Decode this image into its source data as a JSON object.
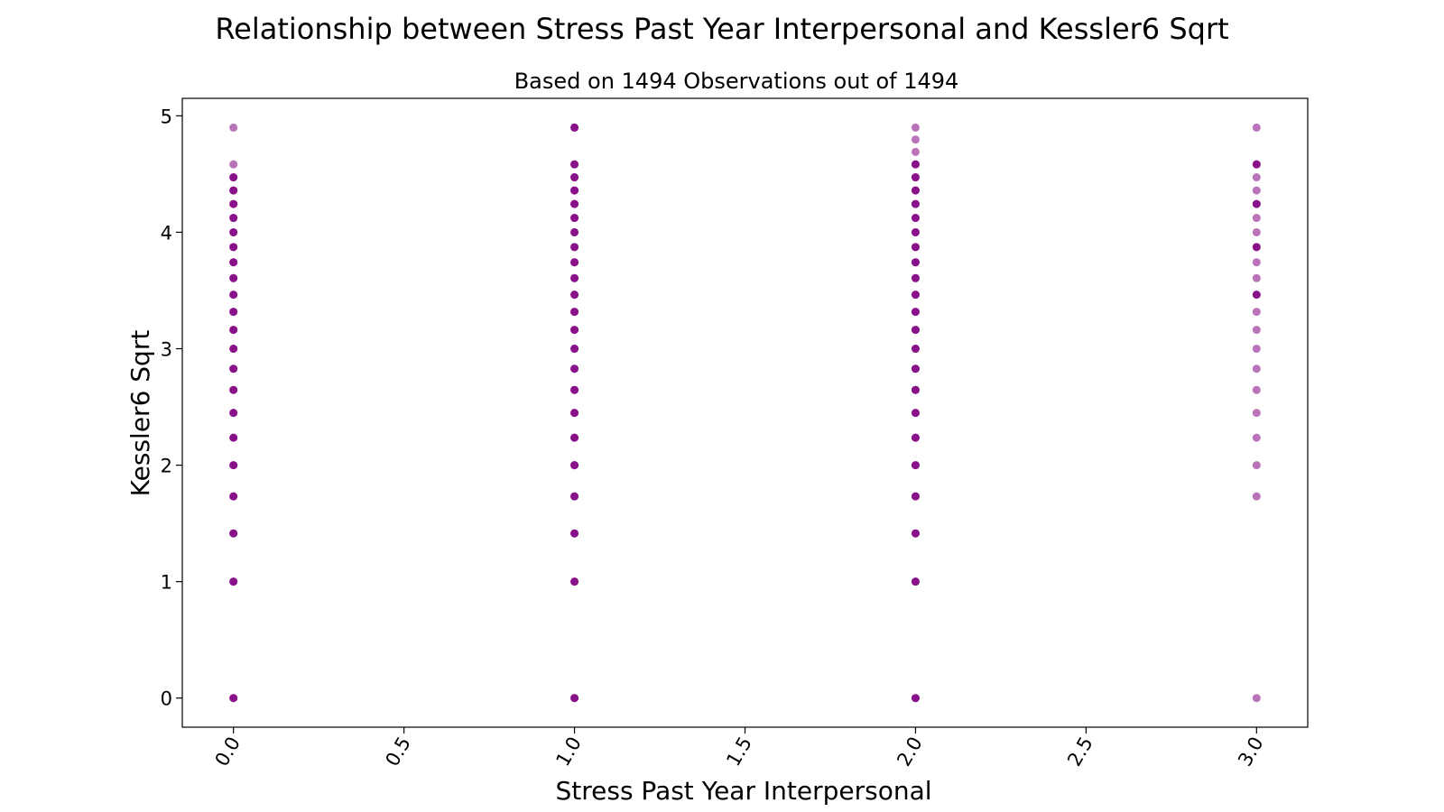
{
  "chart_data": {
    "type": "scatter",
    "title": "Relationship between Stress Past Year Interpersonal and Kessler6 Sqrt",
    "subtitle": "Based on 1494 Observations out of 1494",
    "xlabel": "Stress Past Year Interpersonal",
    "ylabel": "Kessler6 Sqrt",
    "xlim": [
      -0.15,
      3.15
    ],
    "ylim": [
      -0.25,
      5.15
    ],
    "xticks": [
      0.0,
      0.5,
      1.0,
      1.5,
      2.0,
      2.5,
      3.0
    ],
    "xtick_labels": [
      "0.0",
      "0.5",
      "1.0",
      "1.5",
      "2.0",
      "2.5",
      "3.0"
    ],
    "yticks": [
      0,
      1,
      2,
      3,
      4,
      5
    ],
    "ytick_labels": [
      "0",
      "1",
      "2",
      "3",
      "4",
      "5"
    ],
    "grid": false,
    "marker_color": "#800080",
    "series": [
      {
        "points": [
          {
            "x": 0,
            "y": 0
          },
          {
            "x": 0,
            "y": 1
          },
          {
            "x": 0,
            "y": 1.414
          },
          {
            "x": 0,
            "y": 1.732
          },
          {
            "x": 0,
            "y": 2
          },
          {
            "x": 0,
            "y": 2.236
          },
          {
            "x": 0,
            "y": 2.449
          },
          {
            "x": 0,
            "y": 2.646
          },
          {
            "x": 0,
            "y": 2.828
          },
          {
            "x": 0,
            "y": 3
          },
          {
            "x": 0,
            "y": 3.162
          },
          {
            "x": 0,
            "y": 3.317
          },
          {
            "x": 0,
            "y": 3.464
          },
          {
            "x": 0,
            "y": 3.606
          },
          {
            "x": 0,
            "y": 3.742
          },
          {
            "x": 0,
            "y": 3.873
          },
          {
            "x": 0,
            "y": 4
          },
          {
            "x": 0,
            "y": 4.123
          },
          {
            "x": 0,
            "y": 4.243
          },
          {
            "x": 0,
            "y": 4.359
          },
          {
            "x": 0,
            "y": 4.472
          },
          {
            "x": 0,
            "y": 4.583
          },
          {
            "x": 0,
            "y": 4.899
          },
          {
            "x": 1,
            "y": 0
          },
          {
            "x": 1,
            "y": 1
          },
          {
            "x": 1,
            "y": 1.414
          },
          {
            "x": 1,
            "y": 1.732
          },
          {
            "x": 1,
            "y": 2
          },
          {
            "x": 1,
            "y": 2.236
          },
          {
            "x": 1,
            "y": 2.449
          },
          {
            "x": 1,
            "y": 2.646
          },
          {
            "x": 1,
            "y": 2.828
          },
          {
            "x": 1,
            "y": 3
          },
          {
            "x": 1,
            "y": 3.162
          },
          {
            "x": 1,
            "y": 3.317
          },
          {
            "x": 1,
            "y": 3.464
          },
          {
            "x": 1,
            "y": 3.606
          },
          {
            "x": 1,
            "y": 3.742
          },
          {
            "x": 1,
            "y": 3.873
          },
          {
            "x": 1,
            "y": 4
          },
          {
            "x": 1,
            "y": 4.123
          },
          {
            "x": 1,
            "y": 4.243
          },
          {
            "x": 1,
            "y": 4.359
          },
          {
            "x": 1,
            "y": 4.472
          },
          {
            "x": 1,
            "y": 4.583
          },
          {
            "x": 1,
            "y": 4.899
          },
          {
            "x": 2,
            "y": 0
          },
          {
            "x": 2,
            "y": 1
          },
          {
            "x": 2,
            "y": 1.414
          },
          {
            "x": 2,
            "y": 1.732
          },
          {
            "x": 2,
            "y": 2
          },
          {
            "x": 2,
            "y": 2.236
          },
          {
            "x": 2,
            "y": 2.449
          },
          {
            "x": 2,
            "y": 2.646
          },
          {
            "x": 2,
            "y": 2.828
          },
          {
            "x": 2,
            "y": 3
          },
          {
            "x": 2,
            "y": 3.162
          },
          {
            "x": 2,
            "y": 3.317
          },
          {
            "x": 2,
            "y": 3.464
          },
          {
            "x": 2,
            "y": 3.606
          },
          {
            "x": 2,
            "y": 3.742
          },
          {
            "x": 2,
            "y": 3.873
          },
          {
            "x": 2,
            "y": 4
          },
          {
            "x": 2,
            "y": 4.123
          },
          {
            "x": 2,
            "y": 4.243
          },
          {
            "x": 2,
            "y": 4.359
          },
          {
            "x": 2,
            "y": 4.472
          },
          {
            "x": 2,
            "y": 4.583
          },
          {
            "x": 2,
            "y": 4.69
          },
          {
            "x": 2,
            "y": 4.796
          },
          {
            "x": 2,
            "y": 4.899
          },
          {
            "x": 3,
            "y": 0
          },
          {
            "x": 3,
            "y": 1.732
          },
          {
            "x": 3,
            "y": 2
          },
          {
            "x": 3,
            "y": 2.236
          },
          {
            "x": 3,
            "y": 2.449
          },
          {
            "x": 3,
            "y": 2.646
          },
          {
            "x": 3,
            "y": 2.828
          },
          {
            "x": 3,
            "y": 3
          },
          {
            "x": 3,
            "y": 3.162
          },
          {
            "x": 3,
            "y": 3.317
          },
          {
            "x": 3,
            "y": 3.464
          },
          {
            "x": 3,
            "y": 3.606
          },
          {
            "x": 3,
            "y": 3.742
          },
          {
            "x": 3,
            "y": 3.873
          },
          {
            "x": 3,
            "y": 4
          },
          {
            "x": 3,
            "y": 4.123
          },
          {
            "x": 3,
            "y": 4.243
          },
          {
            "x": 3,
            "y": 4.359
          },
          {
            "x": 3,
            "y": 4.472
          },
          {
            "x": 3,
            "y": 4.583
          },
          {
            "x": 3,
            "y": 4.899
          }
        ],
        "dense_y": {
          "0": [
            0,
            1,
            1.414,
            1.732,
            2,
            2.236,
            2.449,
            2.646,
            2.828,
            3,
            3.162,
            3.317,
            3.464,
            3.606,
            3.742,
            3.873,
            4,
            4.123,
            4.243,
            4.359,
            4.472
          ],
          "1": [
            0,
            1,
            1.414,
            1.732,
            2,
            2.236,
            2.449,
            2.646,
            2.828,
            3,
            3.162,
            3.317,
            3.464,
            3.606,
            3.742,
            3.873,
            4,
            4.123,
            4.243,
            4.359,
            4.472,
            4.583,
            4.899
          ],
          "2": [
            0,
            1,
            1.414,
            1.732,
            2,
            2.236,
            2.449,
            2.646,
            2.828,
            3,
            3.162,
            3.317,
            3.464,
            3.606,
            3.742,
            3.873,
            4,
            4.123,
            4.243,
            4.359,
            4.472,
            4.583
          ],
          "3": [
            3.464,
            3.873,
            4.243,
            4.583
          ]
        }
      }
    ]
  }
}
